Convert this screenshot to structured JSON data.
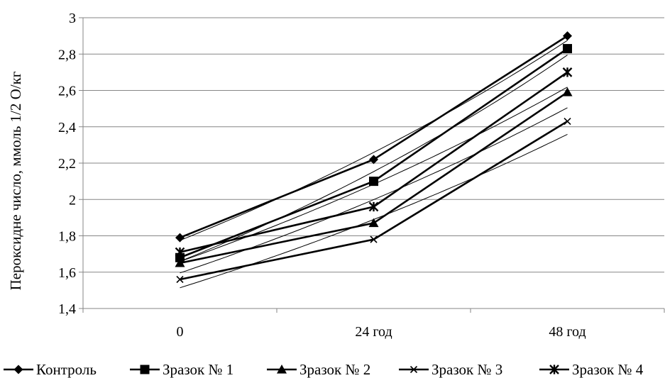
{
  "chart_data": {
    "type": "line",
    "categories": [
      "0",
      "24 год",
      "48 год"
    ],
    "ylabel": "Пероксидне число, ммоль 1/2 О/кг",
    "ylim": [
      1.4,
      3
    ],
    "yticks": [
      "1,4",
      "1,6",
      "1,8",
      "2",
      "2,2",
      "2,4",
      "2,6",
      "2,8",
      "3"
    ],
    "grid": true,
    "legend_position": "bottom",
    "series": [
      {
        "name": "Контроль",
        "marker": "diamond",
        "values": [
          1.79,
          2.22,
          2.9
        ]
      },
      {
        "name": "Зразок № 1",
        "marker": "square",
        "values": [
          1.68,
          2.1,
          2.83
        ]
      },
      {
        "name": "Зразок № 2",
        "marker": "triangle",
        "values": [
          1.65,
          1.87,
          2.59
        ]
      },
      {
        "name": "Зразок № 3",
        "marker": "x",
        "values": [
          1.56,
          1.78,
          2.43
        ]
      },
      {
        "name": "Зразок № 4",
        "marker": "star",
        "values": [
          1.71,
          1.96,
          2.7
        ]
      }
    ]
  }
}
